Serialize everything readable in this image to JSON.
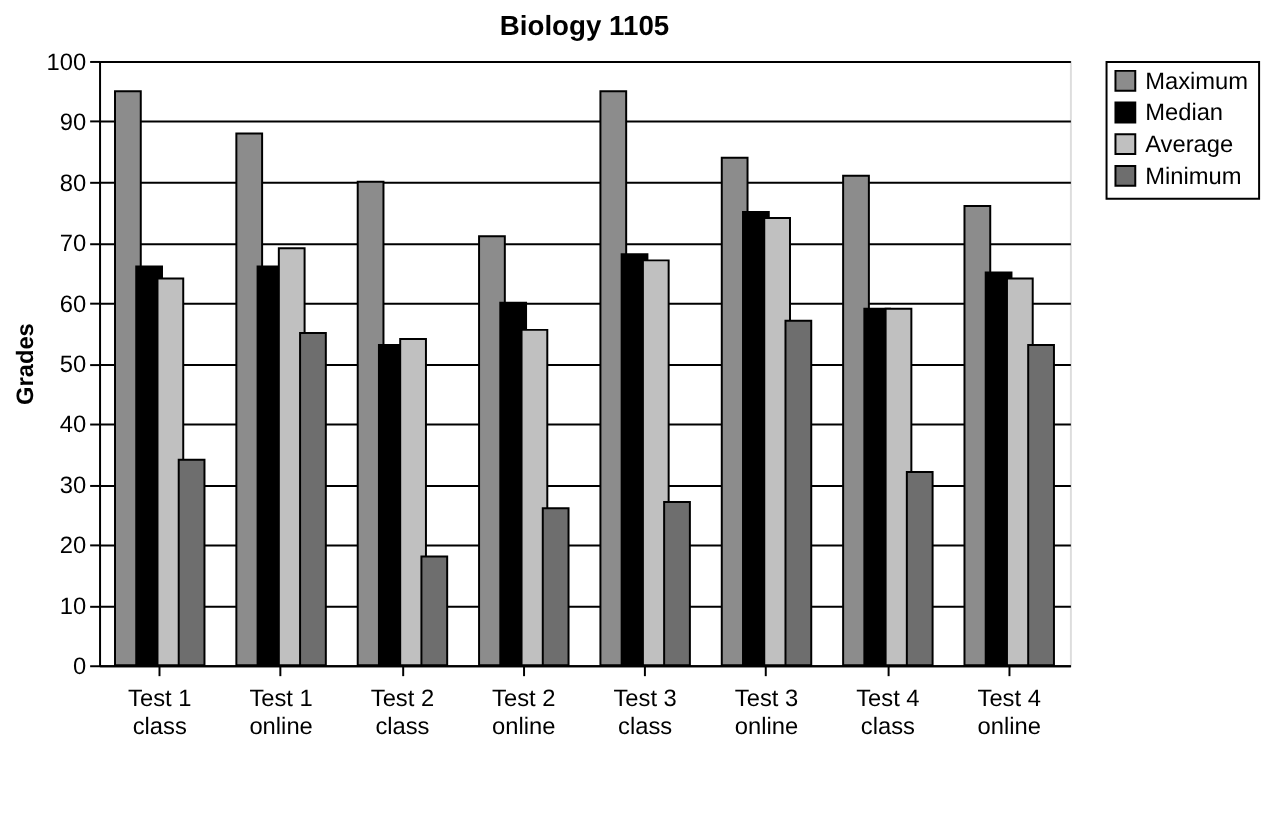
{
  "chart_data": {
    "type": "bar",
    "title": "Biology 1105",
    "ylabel": "Grades",
    "categories": [
      "Test 1\nclass",
      "Test 1\nonline",
      "Test 2\nclass",
      "Test 2\nonline",
      "Test 3\nclass",
      "Test 3\nonline",
      "Test 4\nclass",
      "Test 4\nonline"
    ],
    "series": [
      {
        "name": "Maximum",
        "color": "#8c8c8c",
        "values": [
          95,
          88,
          80,
          71,
          95,
          84,
          81,
          76
        ]
      },
      {
        "name": "Median",
        "color": "#000000",
        "values": [
          66,
          66,
          53,
          60,
          68,
          75,
          59,
          65
        ]
      },
      {
        "name": "Average",
        "color": "#c0c0c0",
        "values": [
          64,
          69,
          54,
          55.5,
          67,
          74,
          59,
          64
        ]
      },
      {
        "name": "Minimum",
        "color": "#6e6e6e",
        "values": [
          34,
          55,
          18,
          26,
          27,
          57,
          32,
          53
        ]
      }
    ],
    "ylim": [
      0,
      100
    ],
    "yticks": [
      0,
      10,
      20,
      30,
      40,
      50,
      60,
      70,
      80,
      90,
      100
    ],
    "grid": "y",
    "legend": "right"
  }
}
